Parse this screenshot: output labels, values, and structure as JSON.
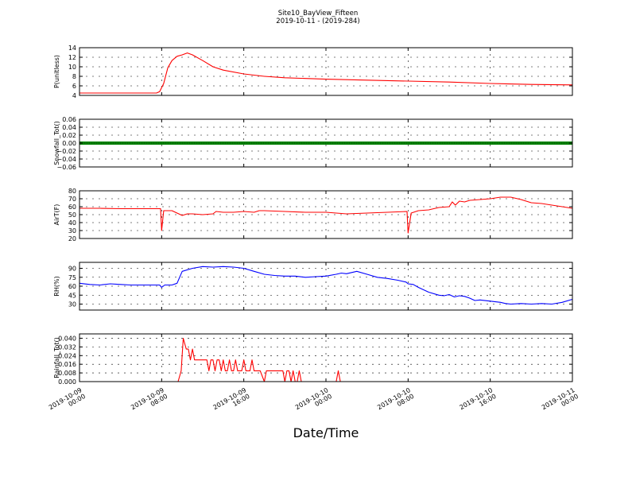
{
  "figure": {
    "title_line1": "Site10_BayView_Fifteen",
    "title_line2": "2019-10-11 - (2019-284)",
    "xlabel": "Date/Time"
  },
  "chart_data": [
    {
      "type": "line",
      "ylabel": "P(unitless)",
      "ylim": [
        4,
        14
      ],
      "yticks": [
        "4",
        "6",
        "8",
        "10",
        "12",
        "14"
      ],
      "ytick_values": [
        4,
        6,
        8,
        10,
        12,
        14
      ],
      "color": "#ff0000",
      "grid": true,
      "x": [
        0,
        7,
        7.5,
        7.8,
        8.2,
        8.6,
        9.0,
        9.5,
        10.0,
        10.5,
        11,
        12,
        13,
        14,
        16,
        18,
        20,
        24,
        28,
        32,
        36,
        40,
        44,
        48
      ],
      "values": [
        4.5,
        4.5,
        4.5,
        4.8,
        6.5,
        9.8,
        11.3,
        12.2,
        12.5,
        12.9,
        12.5,
        11.3,
        10.0,
        9.3,
        8.5,
        8.0,
        7.7,
        7.4,
        7.2,
        7.0,
        6.8,
        6.5,
        6.3,
        6.2
      ]
    },
    {
      "type": "line",
      "ylabel": "Snowfall_Tot()",
      "ylim": [
        -0.06,
        0.06
      ],
      "yticks": [
        "−0.06",
        "−0.04",
        "−0.02",
        "0.00",
        "0.02",
        "0.04",
        "0.06"
      ],
      "ytick_values": [
        -0.06,
        -0.04,
        -0.02,
        0,
        0.02,
        0.04,
        0.06
      ],
      "color": "#008000",
      "grid": true,
      "x": [
        0,
        48
      ],
      "values": [
        0,
        0
      ]
    },
    {
      "type": "line",
      "ylabel": "AirT(F)",
      "ylim": [
        20,
        80
      ],
      "yticks": [
        "20",
        "30",
        "40",
        "50",
        "60",
        "70",
        "80"
      ],
      "ytick_values": [
        20,
        30,
        40,
        50,
        60,
        70,
        80
      ],
      "color": "#ff0000",
      "grid": true,
      "x": [
        0,
        2,
        4,
        6,
        7.9,
        8.0,
        8.2,
        9.0,
        9.5,
        10.0,
        10.5,
        11,
        12,
        13,
        13.3,
        14,
        15,
        16,
        17,
        17.5,
        18,
        20,
        22,
        24,
        26,
        28,
        30,
        31.9,
        32.0,
        32.3,
        33,
        34,
        35,
        36,
        36.3,
        36.6,
        37,
        37.5,
        38,
        39,
        40,
        41,
        42,
        43,
        44,
        45,
        46,
        47,
        48
      ],
      "values": [
        58,
        58,
        57.5,
        57.5,
        57.5,
        30,
        55,
        55,
        52,
        49,
        51,
        51,
        50,
        51,
        54,
        53,
        53,
        54,
        53,
        55,
        55,
        54,
        53,
        53,
        51,
        52,
        53,
        54,
        27,
        52,
        55,
        56,
        59,
        60,
        66,
        62,
        67,
        66,
        68,
        69,
        70,
        72,
        72,
        69,
        65,
        64,
        62,
        60,
        58
      ]
    },
    {
      "type": "line",
      "ylabel": "RH(%)",
      "ylim": [
        20,
        100
      ],
      "yticks": [
        "30",
        "45",
        "60",
        "75",
        "90"
      ],
      "ytick_values": [
        30,
        45,
        60,
        75,
        90
      ],
      "color": "#0000ff",
      "grid": true,
      "x": [
        0,
        1,
        2,
        3,
        4,
        5,
        6,
        7,
        7.8,
        8.0,
        8.3,
        9.0,
        9.5,
        10,
        11,
        12,
        13,
        14,
        15,
        16,
        17,
        18,
        19,
        20,
        21,
        22,
        23,
        24,
        25,
        25.5,
        26,
        27,
        28,
        29,
        30,
        31,
        31.8,
        32,
        32.5,
        33,
        34,
        35,
        35.5,
        36,
        36.5,
        37,
        37.5,
        38,
        38.5,
        39,
        40,
        41,
        41.5,
        42,
        43,
        44,
        45,
        46,
        47,
        48
      ],
      "values": [
        65,
        63,
        62,
        64,
        63,
        62,
        62,
        62,
        62,
        58,
        62,
        62,
        65,
        85,
        90,
        93,
        92,
        93,
        92,
        90,
        85,
        80,
        78,
        77,
        77,
        75,
        76,
        77,
        80,
        82,
        81,
        85,
        80,
        75,
        73,
        70,
        67,
        64,
        63,
        58,
        50,
        45,
        44,
        46,
        42,
        44,
        43,
        40,
        36,
        37,
        35,
        33,
        31,
        30,
        31,
        30,
        31,
        30,
        33,
        38
      ]
    },
    {
      "type": "line",
      "ylabel": "Rainfall_Tot()",
      "ylim": [
        0,
        0.044
      ],
      "yticks": [
        "0.000",
        "0.008",
        "0.016",
        "0.024",
        "0.032",
        "0.040"
      ],
      "ytick_values": [
        0,
        0.008,
        0.016,
        0.024,
        0.032,
        0.04
      ],
      "color": "#ff0000",
      "grid": true,
      "x": [
        0,
        9.6,
        9.9,
        10.1,
        10.4,
        10.6,
        10.8,
        11.0,
        11.2,
        11.4,
        12.4,
        12.6,
        12.8,
        13.0,
        13.2,
        13.4,
        13.6,
        13.8,
        14.0,
        14.2,
        14.4,
        14.6,
        14.8,
        15.0,
        15.2,
        15.4,
        15.6,
        15.8,
        16.0,
        16.2,
        16.4,
        16.6,
        16.8,
        17.0,
        17.2,
        17.4,
        17.6,
        18.0,
        18.2,
        18.4,
        19.8,
        20.0,
        20.2,
        20.4,
        20.6,
        20.8,
        21.0,
        21.2,
        21.4,
        21.6,
        25.0,
        25.2,
        25.4,
        48
      ],
      "values": [
        0,
        0,
        0.01,
        0.04,
        0.03,
        0.03,
        0.02,
        0.03,
        0.02,
        0.02,
        0.02,
        0.01,
        0.02,
        0.02,
        0.01,
        0.02,
        0.02,
        0.01,
        0.02,
        0.01,
        0.01,
        0.02,
        0.01,
        0.01,
        0.02,
        0.01,
        0.01,
        0.01,
        0.02,
        0.01,
        0.01,
        0.01,
        0.02,
        0.01,
        0.01,
        0.01,
        0.01,
        0.0,
        0.01,
        0.01,
        0.01,
        0.0,
        0.01,
        0.01,
        0.0,
        0.01,
        0.0,
        0.0,
        0.01,
        0.0,
        0.0,
        0.01,
        0.0,
        0
      ]
    }
  ],
  "xaxis": {
    "range": [
      "2019-10-09 00:00",
      "2019-10-11 00:00"
    ],
    "ticks": [
      {
        "line1": "2019-10-09",
        "line2": "00:00",
        "at": 0
      },
      {
        "line1": "2019-10-09",
        "line2": "08:00",
        "at": 8
      },
      {
        "line1": "2019-10-09",
        "line2": "16:00",
        "at": 16
      },
      {
        "line1": "2019-10-10",
        "line2": "00:00",
        "at": 24
      },
      {
        "line1": "2019-10-10",
        "line2": "08:00",
        "at": 32
      },
      {
        "line1": "2019-10-10",
        "line2": "16:00",
        "at": 40
      },
      {
        "line1": "2019-10-11",
        "line2": "00:00",
        "at": 48
      }
    ]
  }
}
